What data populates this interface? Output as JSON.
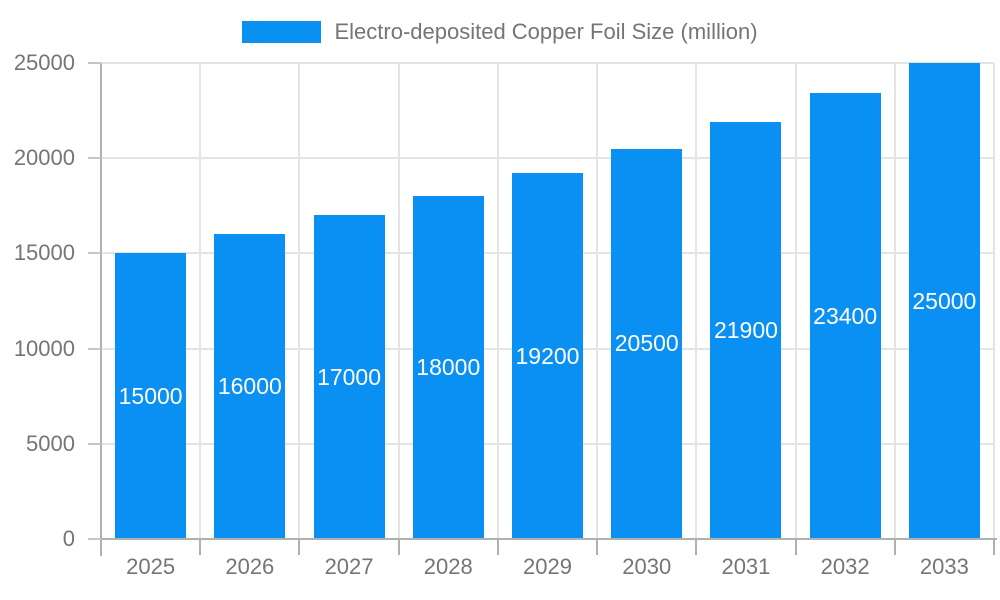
{
  "chart_data": {
    "type": "bar",
    "title": "Electro-deposited Copper Foil Size (million)",
    "legend_position": "top",
    "categories": [
      "2025",
      "2026",
      "2027",
      "2028",
      "2029",
      "2030",
      "2031",
      "2032",
      "2033"
    ],
    "series": [
      {
        "name": "Electro-deposited Copper Foil Size (million)",
        "values": [
          15000,
          16000,
          17000,
          18000,
          19200,
          20500,
          21900,
          23400,
          25000
        ]
      }
    ],
    "data_labels": [
      "15000",
      "16000",
      "17000",
      "18000",
      "19200",
      "20500",
      "21900",
      "23400",
      "25000"
    ],
    "xlabel": "",
    "ylabel": "",
    "ylim": [
      0,
      25000
    ],
    "yticks": [
      0,
      5000,
      10000,
      15000,
      20000,
      25000
    ],
    "ytick_labels": [
      "0",
      "5000",
      "10000",
      "15000",
      "20000",
      "25000"
    ],
    "grid": true,
    "colors": {
      "bar": "#0a8ff2",
      "bar_label_text": "#ffffff",
      "axis_text": "#757575",
      "legend_text": "#757575",
      "gridline": "#e4e4e4",
      "axis_line": "#b0b0b0",
      "tick": "#c6c6c6",
      "background": "#ffffff"
    }
  }
}
